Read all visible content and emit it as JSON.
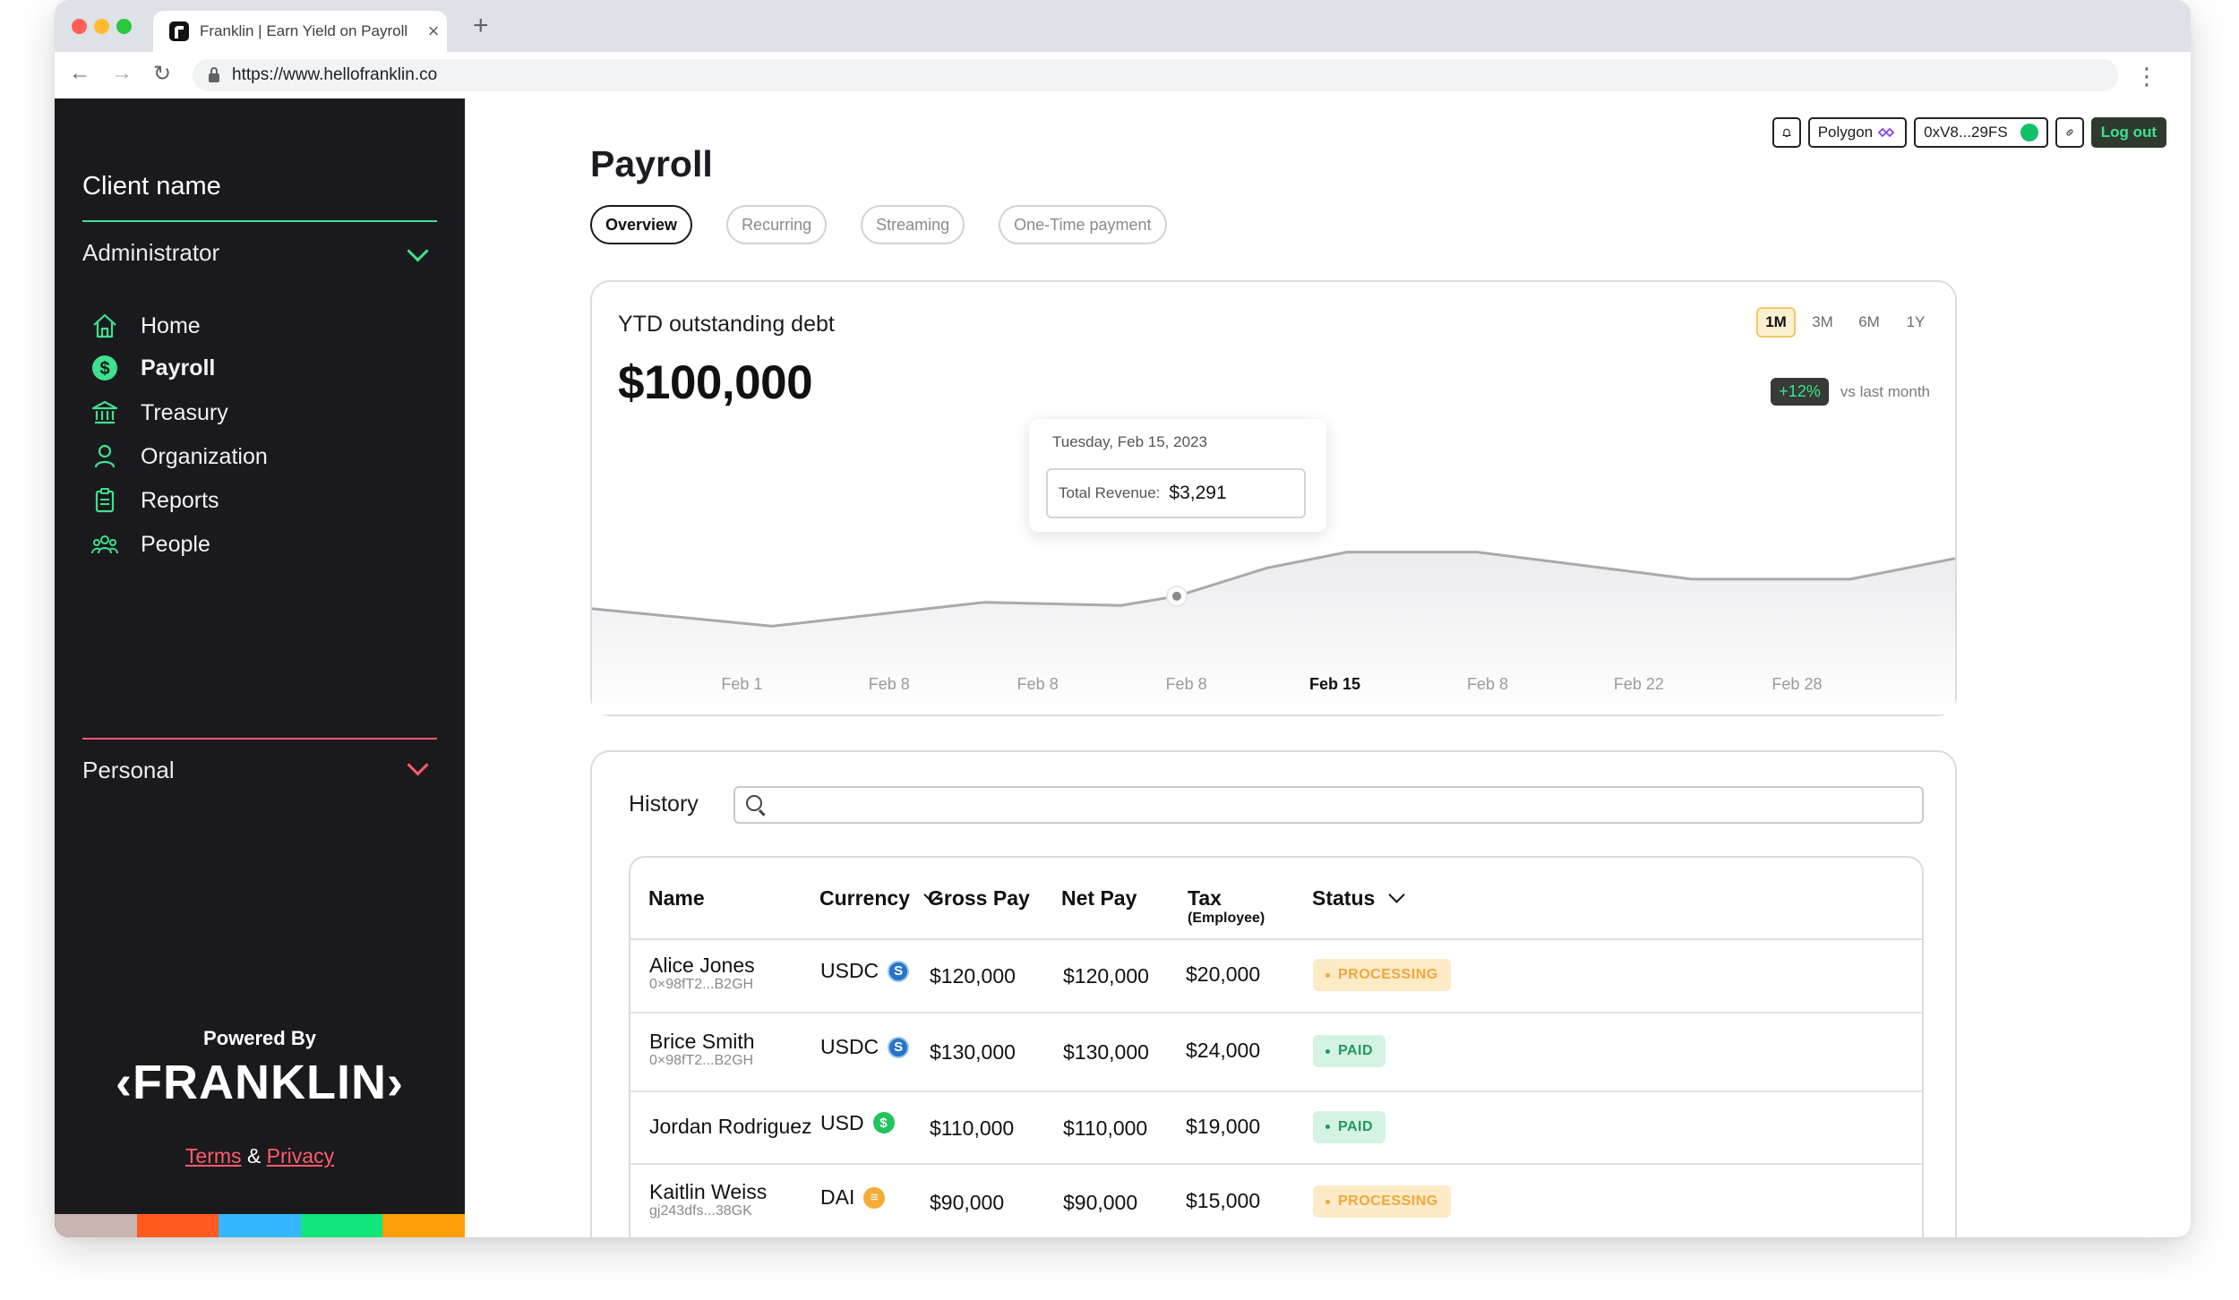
{
  "browser": {
    "tab_title": "Franklin | Earn Yield on Payroll",
    "url": "https://www.hellofranklin.co"
  },
  "sidebar": {
    "client_name": "Client name",
    "role": "Administrator",
    "nav": [
      {
        "label": "Home",
        "icon": "home-icon",
        "active": false
      },
      {
        "label": "Payroll",
        "icon": "dollar-icon",
        "active": true
      },
      {
        "label": "Treasury",
        "icon": "bank-icon",
        "active": false
      },
      {
        "label": "Organization",
        "icon": "person-icon",
        "active": false
      },
      {
        "label": "Reports",
        "icon": "clipboard-icon",
        "active": false
      },
      {
        "label": "People",
        "icon": "people-icon",
        "active": false
      }
    ],
    "personal": "Personal",
    "powered_by": "Powered By",
    "logo_text": "FRANKLIN",
    "terms": "Terms",
    "amp": "&",
    "privacy": "Privacy",
    "stripe_colors": [
      "#c8b4b0",
      "#ff5a1f",
      "#35b7ff",
      "#12e57a",
      "#ff9f0a"
    ]
  },
  "topbar": {
    "network": "Polygon",
    "wallet": "0xV8...29FS",
    "logout": "Log out"
  },
  "page": {
    "title": "Payroll",
    "tabs": [
      "Overview",
      "Recurring",
      "Streaming",
      "One-Time payment"
    ]
  },
  "chart_card": {
    "title": "YTD outstanding debt",
    "value": "$100,000",
    "ranges": [
      "1M",
      "3M",
      "6M",
      "1Y"
    ],
    "active_range": "1M",
    "delta": "+12%",
    "delta_label": "vs last month",
    "tooltip": {
      "date": "Tuesday, Feb 15, 2023",
      "label": "Total Revenue:",
      "value": "$3,291"
    }
  },
  "chart_data": {
    "type": "area",
    "x": [
      "Feb 1",
      "Feb 8",
      "Feb 8",
      "Feb 8",
      "Feb 15",
      "Feb 8",
      "Feb 22",
      "Feb 28"
    ],
    "highlight_x": "Feb 15",
    "line_points": [
      [
        0,
        0.355
      ],
      [
        0.132,
        0.245
      ],
      [
        0.288,
        0.395
      ],
      [
        0.388,
        0.375
      ],
      [
        0.429,
        0.433
      ],
      [
        0.495,
        0.61
      ],
      [
        0.554,
        0.71
      ],
      [
        0.649,
        0.71
      ],
      [
        0.807,
        0.54
      ],
      [
        0.923,
        0.54
      ],
      [
        1.0,
        0.67
      ]
    ],
    "marker_fraction": 0.429,
    "colors": {
      "line": "#a9a9ae",
      "marker": "#8a8a90"
    }
  },
  "history": {
    "label": "History",
    "columns": [
      "Name",
      "Currency",
      "Gross Pay",
      "Net Pay",
      "Tax",
      "(Employee)",
      "Status"
    ],
    "rows": [
      {
        "name": "Alice Jones",
        "addr": "0×98fT2...B2GH",
        "currency": "USDC",
        "coin": "usdc",
        "gross": "$120,000",
        "net": "$120,000",
        "tax": "$20,000",
        "status": "PROCESSING",
        "status_kind": "processing"
      },
      {
        "name": "Brice Smith",
        "addr": "0×98fT2...B2GH",
        "currency": "USDC",
        "coin": "usdc",
        "gross": "$130,000",
        "net": "$130,000",
        "tax": "$24,000",
        "status": "PAID",
        "status_kind": "paid"
      },
      {
        "name": "Jordan Rodriguez",
        "addr": "",
        "currency": "USD",
        "coin": "usd",
        "gross": "$110,000",
        "net": "$110,000",
        "tax": "$19,000",
        "status": "PAID",
        "status_kind": "paid"
      },
      {
        "name": "Kaitlin Weiss",
        "addr": "gj243dfs...38GK",
        "currency": "DAI",
        "coin": "dai",
        "gross": "$90,000",
        "net": "$90,000",
        "tax": "$15,000",
        "status": "PROCESSING",
        "status_kind": "processing"
      }
    ]
  },
  "colors": {
    "accent_green": "#3ee28e",
    "accent_red": "#ff5c6b",
    "sidebar_bg": "#1a191e"
  }
}
